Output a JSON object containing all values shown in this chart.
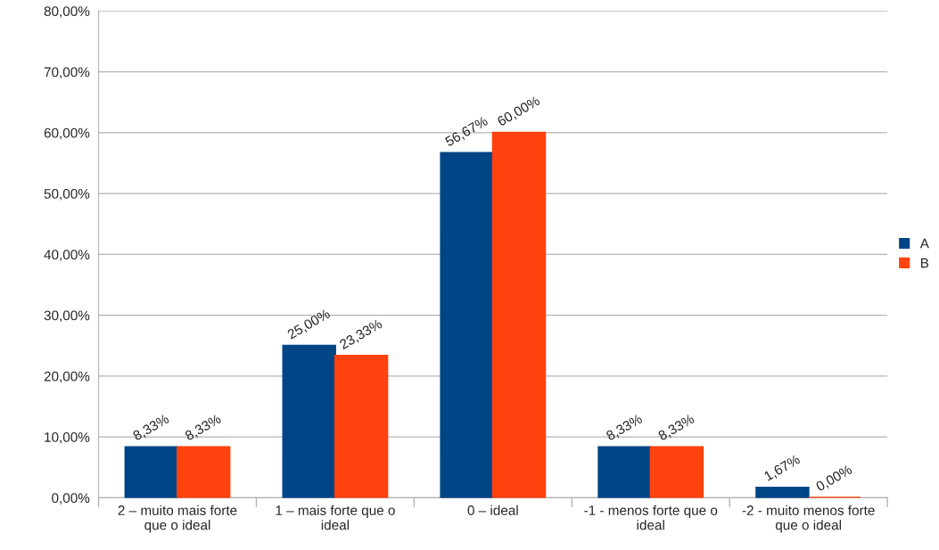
{
  "chart_data": {
    "type": "bar",
    "categories": [
      "2 – muito mais forte\nque o ideal",
      "1 – mais forte que o\nideal",
      "0 – ideal",
      "-1 - menos forte que o\nideal",
      "-2 - muito menos forte\nque o ideal"
    ],
    "series": [
      {
        "name": "A",
        "color": "#004586",
        "values": [
          8.33,
          25.0,
          56.67,
          8.33,
          1.67
        ],
        "value_labels": [
          "8,33%",
          "25,00%",
          "56,67%",
          "8,33%",
          "1,67%"
        ]
      },
      {
        "name": "B",
        "color": "#ff420e",
        "values": [
          8.33,
          23.33,
          60.0,
          8.33,
          0.0
        ],
        "value_labels": [
          "8,33%",
          "23,33%",
          "60,00%",
          "8,33%",
          "0,00%"
        ]
      }
    ],
    "ylim": [
      0,
      80
    ],
    "yticks": [
      {
        "value": 0,
        "label": "0,00%"
      },
      {
        "value": 10,
        "label": "10,00%"
      },
      {
        "value": 20,
        "label": "20,00%"
      },
      {
        "value": 30,
        "label": "30,00%"
      },
      {
        "value": 40,
        "label": "40,00%"
      },
      {
        "value": 50,
        "label": "50,00%"
      },
      {
        "value": 60,
        "label": "60,00%"
      },
      {
        "value": 70,
        "label": "70,00%"
      },
      {
        "value": 80,
        "label": "80,00%"
      }
    ],
    "grid": "y",
    "legend": "right"
  }
}
